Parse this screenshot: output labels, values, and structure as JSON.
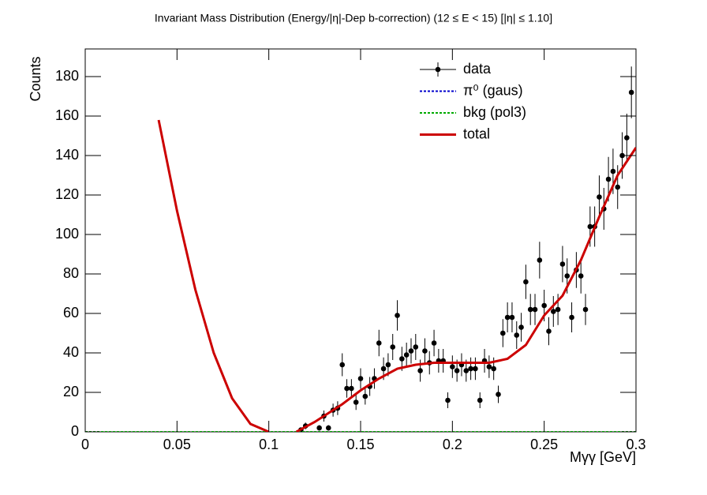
{
  "chart_data": {
    "type": "scatter",
    "title": "Invariant Mass Distribution (Energy/|η|-Dep b-correction)   (12 ≤ E < 15)   [|η| ≤ 1.10]",
    "x_label": "Mγγ  [GeV]",
    "y_label": "Counts",
    "xlim": [
      0,
      0.3
    ],
    "ylim": [
      0,
      194
    ],
    "xticks": [
      0,
      0.05,
      0.1,
      0.15,
      0.2,
      0.25,
      0.3
    ],
    "yticks": [
      0,
      20,
      40,
      60,
      80,
      100,
      120,
      140,
      160,
      180
    ],
    "legend": "top-right",
    "series": [
      {
        "name": "data",
        "type": "scatter",
        "color": "#000000",
        "x": [
          0.1175,
          0.12,
          0.1275,
          0.13,
          0.1325,
          0.135,
          0.1375,
          0.14,
          0.1425,
          0.145,
          0.1475,
          0.15,
          0.1525,
          0.155,
          0.1575,
          0.16,
          0.1625,
          0.165,
          0.1675,
          0.17,
          0.1725,
          0.175,
          0.1775,
          0.18,
          0.1825,
          0.185,
          0.1875,
          0.19,
          0.1925,
          0.195,
          0.1975,
          0.2,
          0.2025,
          0.205,
          0.2075,
          0.21,
          0.2125,
          0.215,
          0.2175,
          0.22,
          0.2225,
          0.225,
          0.2275,
          0.23,
          0.2325,
          0.235,
          0.2375,
          0.24,
          0.2425,
          0.245,
          0.2475,
          0.25,
          0.2525,
          0.255,
          0.2575,
          0.26,
          0.2625,
          0.265,
          0.2675,
          0.27,
          0.2725,
          0.275,
          0.2775,
          0.28,
          0.2825,
          0.285,
          0.2875,
          0.29,
          0.2925,
          0.295,
          0.2975
        ],
        "values": [
          1,
          3,
          2,
          8,
          2,
          11,
          12,
          34,
          22,
          22,
          15,
          27,
          18,
          23,
          27,
          45,
          32,
          34,
          43,
          59,
          37,
          39,
          41,
          43,
          31,
          41,
          35,
          45,
          36,
          36,
          16,
          33,
          31,
          34,
          31,
          32,
          32,
          16,
          36,
          33,
          32,
          19,
          50,
          58,
          58,
          49,
          53,
          76,
          62,
          62,
          87,
          64,
          51,
          61,
          62,
          85,
          79,
          58,
          82,
          79,
          62,
          104,
          104,
          119,
          113,
          128,
          132,
          124,
          140,
          149,
          172
        ],
        "errors": [
          1,
          1.7,
          1.4,
          2.8,
          1.4,
          3.3,
          3.5,
          5.8,
          4.7,
          4.7,
          3.9,
          5.2,
          4.2,
          4.8,
          5.2,
          6.7,
          5.7,
          5.8,
          6.6,
          7.7,
          6.1,
          6.2,
          6.4,
          6.6,
          5.6,
          6.4,
          5.9,
          6.7,
          6,
          6,
          4,
          5.7,
          5.6,
          5.8,
          5.6,
          5.7,
          5.7,
          4,
          6,
          5.7,
          5.7,
          4.4,
          7.1,
          7.6,
          7.6,
          7,
          7.3,
          8.7,
          7.9,
          7.9,
          9.3,
          8,
          7.1,
          7.8,
          7.9,
          9.2,
          8.9,
          7.6,
          9.1,
          8.9,
          7.9,
          10.2,
          10.2,
          10.9,
          10.6,
          11.3,
          11.5,
          11.1,
          11.8,
          12.2,
          13.1
        ]
      },
      {
        "name": "π⁰ (gaus)",
        "type": "line",
        "style": "dotted",
        "color": "#0000cc",
        "x": [
          0,
          0.3
        ],
        "values": [
          0,
          0
        ]
      },
      {
        "name": "bkg (pol3)",
        "type": "line",
        "style": "dotted",
        "color": "#00aa00",
        "x": [
          0,
          0.3
        ],
        "values": [
          0,
          0
        ]
      },
      {
        "name": "total",
        "type": "line",
        "style": "solid",
        "color": "#cc0000",
        "x": [
          0.04,
          0.05,
          0.06,
          0.07,
          0.08,
          0.09,
          0.1,
          0.108,
          0.115,
          0.125,
          0.14,
          0.15,
          0.16,
          0.17,
          0.18,
          0.19,
          0.2,
          0.21,
          0.22,
          0.23,
          0.24,
          0.25,
          0.26,
          0.27,
          0.28,
          0.29,
          0.3
        ],
        "values": [
          158,
          112,
          72,
          40,
          17,
          4,
          0,
          null,
          0,
          5,
          14,
          21,
          27,
          32,
          34,
          35,
          35,
          35,
          35,
          37,
          44,
          59,
          69,
          87,
          109,
          130,
          144
        ]
      }
    ]
  }
}
